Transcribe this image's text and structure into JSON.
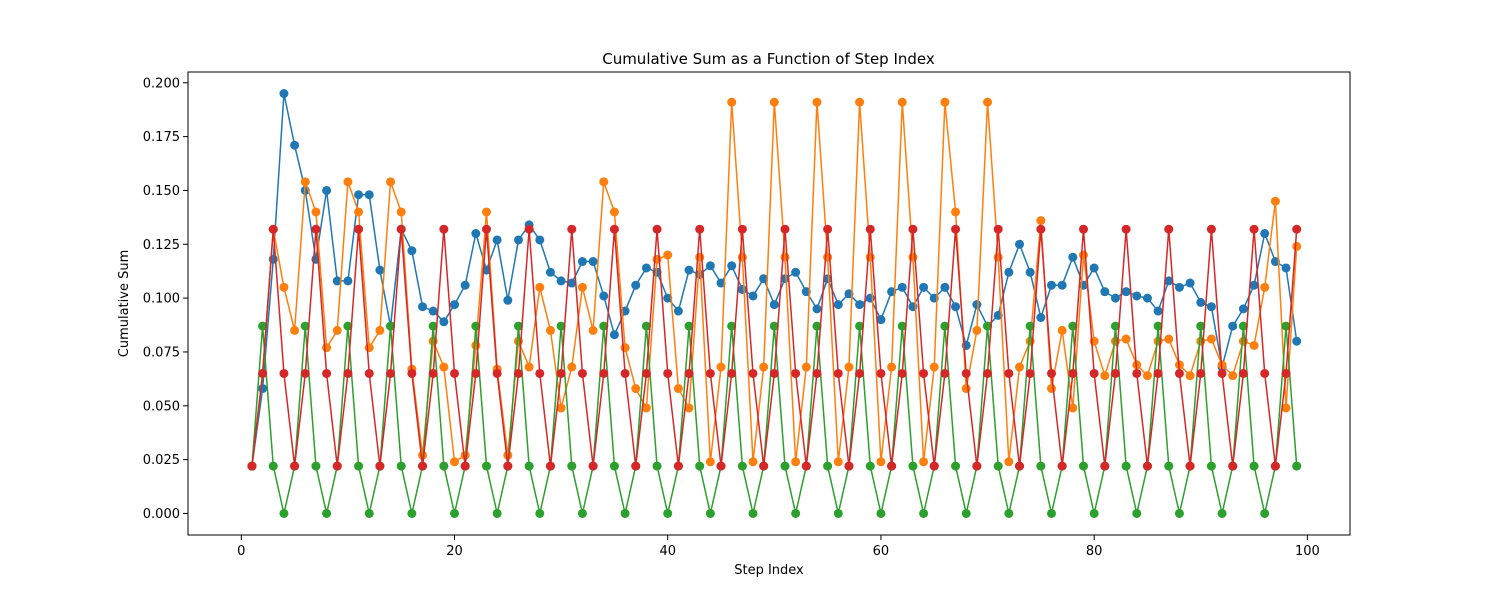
{
  "chart_data": {
    "type": "line",
    "title": "Cumulative Sum as a Function of Step Index",
    "xlabel": "Step Index",
    "ylabel": "Cumulative Sum",
    "xlim": [
      -5,
      104
    ],
    "ylim": [
      -0.01,
      0.205
    ],
    "xticks": [
      0,
      20,
      40,
      60,
      80,
      100
    ],
    "xtick_labels": [
      "0",
      "20",
      "40",
      "60",
      "80",
      "100"
    ],
    "yticks": [
      0.0,
      0.025,
      0.05,
      0.075,
      0.1,
      0.125,
      0.15,
      0.175,
      0.2
    ],
    "ytick_labels": [
      "0.000",
      "0.025",
      "0.050",
      "0.075",
      "0.100",
      "0.125",
      "0.150",
      "0.175",
      "0.200"
    ],
    "grid": false,
    "legend": "none",
    "marker": "circle",
    "x": [
      1,
      2,
      3,
      4,
      5,
      6,
      7,
      8,
      9,
      10,
      11,
      12,
      13,
      14,
      15,
      16,
      17,
      18,
      19,
      20,
      21,
      22,
      23,
      24,
      25,
      26,
      27,
      28,
      29,
      30,
      31,
      32,
      33,
      34,
      35,
      36,
      37,
      38,
      39,
      40,
      41,
      42,
      43,
      44,
      45,
      46,
      47,
      48,
      49,
      50,
      51,
      52,
      53,
      54,
      55,
      56,
      57,
      58,
      59,
      60,
      61,
      62,
      63,
      64,
      65,
      66,
      67,
      68,
      69,
      70,
      71,
      72,
      73,
      74,
      75,
      76,
      77,
      78,
      79,
      80,
      81,
      82,
      83,
      84,
      85,
      86,
      87,
      88,
      89,
      90,
      91,
      92,
      93,
      94,
      95,
      96,
      97,
      98,
      99
    ],
    "series": [
      {
        "color": "#1f77b4",
        "values": [
          0.022,
          0.058,
          0.118,
          0.195,
          0.171,
          0.15,
          0.118,
          0.15,
          0.108,
          0.108,
          0.148,
          0.148,
          0.113,
          0.087,
          0.132,
          0.122,
          0.096,
          0.094,
          0.089,
          0.097,
          0.106,
          0.13,
          0.113,
          0.127,
          0.099,
          0.127,
          0.134,
          0.127,
          0.112,
          0.108,
          0.107,
          0.117,
          0.117,
          0.101,
          0.083,
          0.094,
          0.106,
          0.114,
          0.112,
          0.1,
          0.094,
          0.113,
          0.111,
          0.115,
          0.107,
          0.115,
          0.104,
          0.101,
          0.109,
          0.097,
          0.109,
          0.112,
          0.103,
          0.095,
          0.109,
          0.097,
          0.102,
          0.097,
          0.1,
          0.09,
          0.103,
          0.105,
          0.096,
          0.105,
          0.1,
          0.105,
          0.096,
          0.078,
          0.097,
          0.087,
          0.092,
          0.112,
          0.125,
          0.112,
          0.091,
          0.106,
          0.106,
          0.119,
          0.106,
          0.114,
          0.103,
          0.1,
          0.103,
          0.101,
          0.1,
          0.094,
          0.108,
          0.105,
          0.107,
          0.098,
          0.096,
          0.068,
          0.087,
          0.095,
          0.106,
          0.13,
          0.117,
          0.114,
          0.08
        ]
      },
      {
        "color": "#ff7f0e",
        "values": [
          0.022,
          0.065,
          0.132,
          0.105,
          0.085,
          0.154,
          0.14,
          0.077,
          0.085,
          0.154,
          0.14,
          0.077,
          0.085,
          0.154,
          0.14,
          0.067,
          0.027,
          0.08,
          0.068,
          0.024,
          0.027,
          0.078,
          0.14,
          0.067,
          0.027,
          0.08,
          0.068,
          0.105,
          0.085,
          0.049,
          0.068,
          0.105,
          0.085,
          0.154,
          0.14,
          0.077,
          0.058,
          0.049,
          0.118,
          0.12,
          0.058,
          0.049,
          0.119,
          0.024,
          0.068,
          0.191,
          0.119,
          0.024,
          0.068,
          0.191,
          0.119,
          0.024,
          0.068,
          0.191,
          0.119,
          0.024,
          0.068,
          0.191,
          0.119,
          0.024,
          0.068,
          0.191,
          0.119,
          0.024,
          0.068,
          0.191,
          0.14,
          0.058,
          0.085,
          0.191,
          0.119,
          0.024,
          0.068,
          0.08,
          0.136,
          0.058,
          0.085,
          0.049,
          0.12,
          0.08,
          0.064,
          0.08,
          0.081,
          0.069,
          0.064,
          0.08,
          0.081,
          0.069,
          0.064,
          0.08,
          0.081,
          0.069,
          0.064,
          0.08,
          0.078,
          0.105,
          0.145,
          0.049,
          0.124
        ]
      },
      {
        "color": "#2ca02c",
        "values": [
          0.022,
          0.087,
          0.022,
          0.0,
          0.022,
          0.087,
          0.022,
          0.0,
          0.022,
          0.087,
          0.022,
          0.0,
          0.022,
          0.087,
          0.022,
          0.0,
          0.022,
          0.087,
          0.022,
          0.0,
          0.022,
          0.087,
          0.022,
          0.0,
          0.022,
          0.087,
          0.022,
          0.0,
          0.022,
          0.087,
          0.022,
          0.0,
          0.022,
          0.087,
          0.022,
          0.0,
          0.022,
          0.087,
          0.022,
          0.0,
          0.022,
          0.087,
          0.022,
          0.0,
          0.022,
          0.087,
          0.022,
          0.0,
          0.022,
          0.087,
          0.022,
          0.0,
          0.022,
          0.087,
          0.022,
          0.0,
          0.022,
          0.087,
          0.022,
          0.0,
          0.022,
          0.087,
          0.022,
          0.0,
          0.022,
          0.087,
          0.022,
          0.0,
          0.022,
          0.087,
          0.022,
          0.0,
          0.022,
          0.087,
          0.022,
          0.0,
          0.022,
          0.087,
          0.022,
          0.0,
          0.022,
          0.087,
          0.022,
          0.0,
          0.022,
          0.087,
          0.022,
          0.0,
          0.022,
          0.087,
          0.022,
          0.0,
          0.022,
          0.087,
          0.022,
          0.0,
          0.022,
          0.087,
          0.022
        ]
      },
      {
        "color": "#d62728",
        "values": [
          0.022,
          0.065,
          0.132,
          0.065,
          0.022,
          0.065,
          0.132,
          0.065,
          0.022,
          0.065,
          0.132,
          0.065,
          0.022,
          0.065,
          0.132,
          0.065,
          0.022,
          0.065,
          0.132,
          0.065,
          0.022,
          0.065,
          0.132,
          0.065,
          0.022,
          0.065,
          0.132,
          0.065,
          0.022,
          0.065,
          0.132,
          0.065,
          0.022,
          0.065,
          0.132,
          0.065,
          0.022,
          0.065,
          0.132,
          0.065,
          0.022,
          0.065,
          0.132,
          0.065,
          0.022,
          0.065,
          0.132,
          0.065,
          0.022,
          0.065,
          0.132,
          0.065,
          0.022,
          0.065,
          0.132,
          0.065,
          0.022,
          0.065,
          0.132,
          0.065,
          0.022,
          0.065,
          0.132,
          0.065,
          0.022,
          0.065,
          0.132,
          0.065,
          0.022,
          0.065,
          0.132,
          0.065,
          0.022,
          0.065,
          0.132,
          0.065,
          0.022,
          0.065,
          0.132,
          0.065,
          0.022,
          0.065,
          0.132,
          0.065,
          0.022,
          0.065,
          0.132,
          0.065,
          0.022,
          0.065,
          0.132,
          0.065,
          0.022,
          0.065,
          0.132,
          0.065,
          0.022,
          0.065,
          0.132
        ]
      }
    ]
  }
}
